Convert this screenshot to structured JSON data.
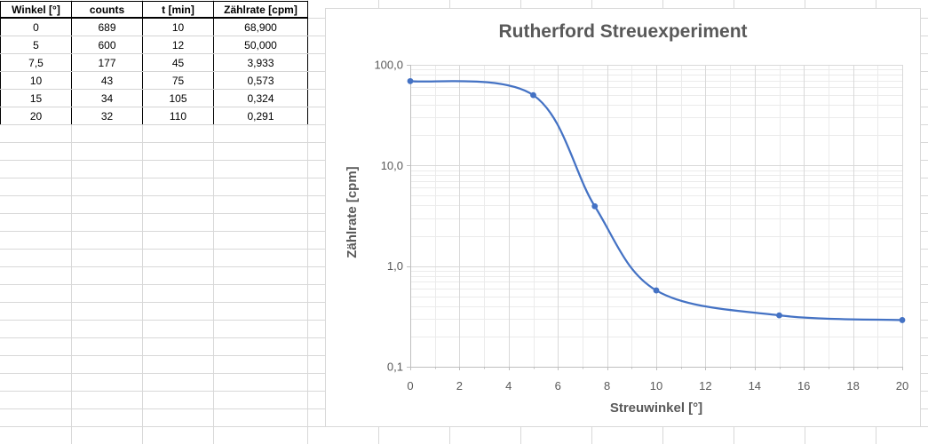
{
  "sheet": {
    "table": {
      "headers": [
        "Winkel [°]",
        "counts",
        "t [min]",
        "Zählrate [cpm]"
      ],
      "rows": [
        [
          "0",
          "689",
          "10",
          "68,900"
        ],
        [
          "5",
          "600",
          "12",
          "50,000"
        ],
        [
          "7,5",
          "177",
          "45",
          "3,933"
        ],
        [
          "10",
          "43",
          "75",
          "0,573"
        ],
        [
          "15",
          "34",
          "105",
          "0,324"
        ],
        [
          "20",
          "32",
          "110",
          "0,291"
        ]
      ]
    }
  },
  "chart_data": {
    "type": "line",
    "title": "Rutherford Streuexperiment",
    "xlabel": "Streuwinkel [°]",
    "ylabel": "Zählrate [cpm]",
    "x": [
      0,
      5,
      7.5,
      10,
      15,
      20
    ],
    "y": [
      68.9,
      50.0,
      3.933,
      0.573,
      0.324,
      0.291
    ],
    "x_range": [
      0,
      20
    ],
    "y_range": [
      0.1,
      100
    ],
    "y_scale": "log",
    "x_ticks": [
      0,
      2,
      4,
      6,
      8,
      10,
      12,
      14,
      16,
      18,
      20
    ],
    "x_tick_labels": [
      "0",
      "2",
      "4",
      "6",
      "8",
      "10",
      "12",
      "14",
      "16",
      "18",
      "20"
    ],
    "x_minor_unit": 1,
    "y_ticks": [
      100,
      10,
      1,
      0.1
    ],
    "y_tick_labels": [
      "100,0",
      "10,0",
      "1,0",
      "0,1"
    ],
    "grid": "major+minor",
    "legend": "none",
    "smooth": true,
    "markers": true,
    "line_color": "#4472C4",
    "text_color": "#595959",
    "major_grid_color": "#d9d9d9",
    "minor_grid_color": "#ebebeb",
    "axis_color": "#bfbfbf"
  }
}
